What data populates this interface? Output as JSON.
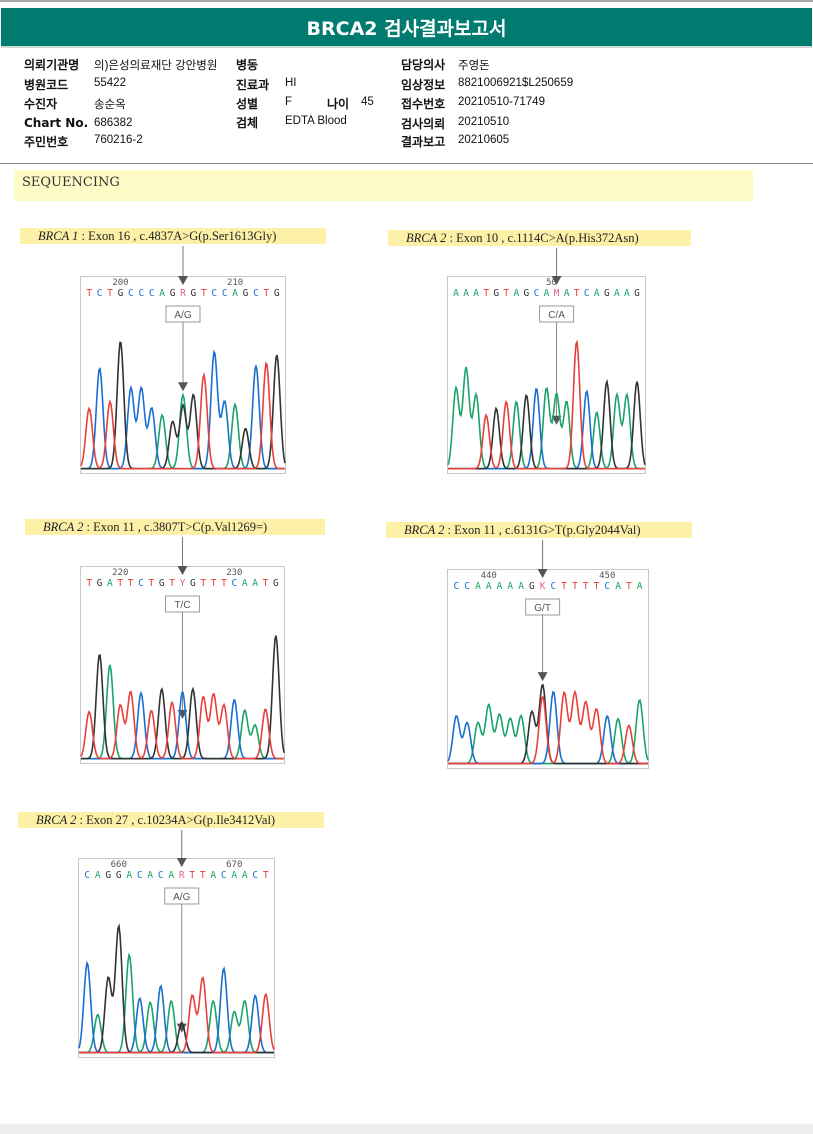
{
  "title": "BRCA2 검사결과보고서",
  "patient_info": {
    "left": [
      {
        "label": "의뢰기관명",
        "value": "의)은성의료재단 강안병원"
      },
      {
        "label": "병원코드",
        "value": "55422"
      },
      {
        "label": "수진자",
        "value": "송순옥"
      },
      {
        "label": "Chart No.",
        "value": "686382"
      },
      {
        "label": "주민번호",
        "value": "760216-2"
      }
    ],
    "middle": [
      {
        "label": "병동",
        "value": ""
      },
      {
        "label": "진료과",
        "value": "HI"
      },
      {
        "label": "성별",
        "value": "F"
      },
      {
        "label": "검체",
        "value": "EDTA Blood"
      }
    ],
    "age": {
      "label": "나이",
      "value": "45"
    },
    "right": [
      {
        "label": "담당의사",
        "value": "주영돈"
      },
      {
        "label": "임상정보",
        "value": "8821006921$L250659"
      },
      {
        "label": "접수번호",
        "value": "20210510-71749"
      },
      {
        "label": "검사의뢰",
        "value": "20210510"
      },
      {
        "label": "결과보고",
        "value": "20210605"
      }
    ]
  },
  "section_title": "SEQUENCING",
  "colors": {
    "header": "#017b70",
    "highlight": "#fdf1a8",
    "A": "#1aa36b",
    "C": "#1a6fd0",
    "G": "#333333",
    "T": "#e8403a",
    "ambig": "#e0608a"
  },
  "variants": [
    {
      "gene": "BRCA 1",
      "desc": " : Exon 16 , c.4837A>G(p.Ser1613Gly)",
      "pos_start": "200",
      "pos_end": "210",
      "sequence": "TCTGCCCAGRGTCCAGCTG",
      "call": "A/G",
      "mut_index": 9,
      "peaks": [
        [
          "T",
          0.45
        ],
        [
          "C",
          0.75
        ],
        [
          "T",
          0.5
        ],
        [
          "G",
          0.95
        ],
        [
          "C",
          0.6
        ],
        [
          "C",
          0.6
        ],
        [
          "C",
          0.45
        ],
        [
          "A",
          0.4
        ],
        [
          "G",
          0.35
        ],
        [
          "A",
          0.55
        ],
        [
          "G",
          0.55
        ],
        [
          "T",
          0.7
        ],
        [
          "C",
          0.87
        ],
        [
          "C",
          0.5
        ],
        [
          "A",
          0.48
        ],
        [
          "G",
          0.3
        ],
        [
          "C",
          0.77
        ],
        [
          "T",
          0.79
        ],
        [
          "G",
          0.85
        ]
      ]
    },
    {
      "gene": "BRCA 2",
      "desc": " : Exon 10 , c.1114C>A(p.His372Asn)",
      "pos_start": "50",
      "pos_end": "",
      "sequence": "AAATGTAGCAMATCAGAAG",
      "call": "C/A",
      "mut_index": 10,
      "peaks": [
        [
          "A",
          0.6
        ],
        [
          "A",
          0.75
        ],
        [
          "A",
          0.55
        ],
        [
          "T",
          0.4
        ],
        [
          "G",
          0.45
        ],
        [
          "T",
          0.5
        ],
        [
          "A",
          0.5
        ],
        [
          "G",
          0.55
        ],
        [
          "C",
          0.6
        ],
        [
          "A",
          0.6
        ],
        [
          "A",
          0.3
        ],
        [
          "A",
          0.5
        ],
        [
          "T",
          0.95
        ],
        [
          "C",
          0.58
        ],
        [
          "A",
          0.42
        ],
        [
          "G",
          0.65
        ],
        [
          "A",
          0.55
        ],
        [
          "A",
          0.55
        ],
        [
          "G",
          0.65
        ]
      ]
    },
    {
      "gene": "BRCA 2",
      "desc": " : Exon 11 , c.3807T>C(p.Val1269=)",
      "pos_start": "220",
      "pos_end": "230",
      "sequence": "TGATTCTGTYGTTTCAATG",
      "call": "T/C",
      "mut_index": 9,
      "peaks": [
        [
          "T",
          0.35
        ],
        [
          "G",
          0.78
        ],
        [
          "A",
          0.7
        ],
        [
          "T",
          0.4
        ],
        [
          "T",
          0.5
        ],
        [
          "C",
          0.49
        ],
        [
          "T",
          0.36
        ],
        [
          "G",
          0.52
        ],
        [
          "T",
          0.42
        ],
        [
          "C",
          0.27
        ],
        [
          "G",
          0.52
        ],
        [
          "T",
          0.46
        ],
        [
          "T",
          0.48
        ],
        [
          "T",
          0.4
        ],
        [
          "C",
          0.44
        ],
        [
          "A",
          0.36
        ],
        [
          "A",
          0.25
        ],
        [
          "T",
          0.37
        ],
        [
          "G",
          0.92
        ]
      ]
    },
    {
      "gene": "BRCA 2",
      "desc": " : Exon 11 , c.6131G>T(p.Gly2044Val)",
      "pos_start": "440",
      "pos_end": "450",
      "sequence": "CCAAAAAGKCTTTTCATA",
      "call": "G/T",
      "mut_index": 8,
      "peaks": [
        [
          "C",
          0.35
        ],
        [
          "C",
          0.3
        ],
        [
          "A",
          0.3
        ],
        [
          "A",
          0.43
        ],
        [
          "A",
          0.36
        ],
        [
          "A",
          0.33
        ],
        [
          "A",
          0.35
        ],
        [
          "G",
          0.38
        ],
        [
          "G",
          0.58
        ],
        [
          "C",
          0.53
        ],
        [
          "T",
          0.52
        ],
        [
          "T",
          0.52
        ],
        [
          "T",
          0.45
        ],
        [
          "T",
          0.4
        ],
        [
          "C",
          0.35
        ],
        [
          "A",
          0.33
        ],
        [
          "T",
          0.28
        ],
        [
          "A",
          0.47
        ]
      ]
    },
    {
      "gene": "BRCA 2",
      "desc": " : Exon 27 , c.10234A>G(p.Ile3412Val)",
      "pos_start": "660",
      "pos_end": "670",
      "sequence": "CAGGACACARTTACAACT",
      "call": "A/G",
      "mut_index": 9,
      "peaks": [
        [
          "C",
          0.66
        ],
        [
          "A",
          0.28
        ],
        [
          "G",
          0.55
        ],
        [
          "G",
          0.93
        ],
        [
          "A",
          0.72
        ],
        [
          "C",
          0.4
        ],
        [
          "A",
          0.37
        ],
        [
          "C",
          0.49
        ],
        [
          "A",
          0.38
        ],
        [
          "G",
          0.12
        ],
        [
          "T",
          0.42
        ],
        [
          "T",
          0.55
        ],
        [
          "A",
          0.38
        ],
        [
          "C",
          0.62
        ],
        [
          "A",
          0.3
        ],
        [
          "A",
          0.38
        ],
        [
          "C",
          0.42
        ],
        [
          "T",
          0.43
        ]
      ]
    }
  ]
}
